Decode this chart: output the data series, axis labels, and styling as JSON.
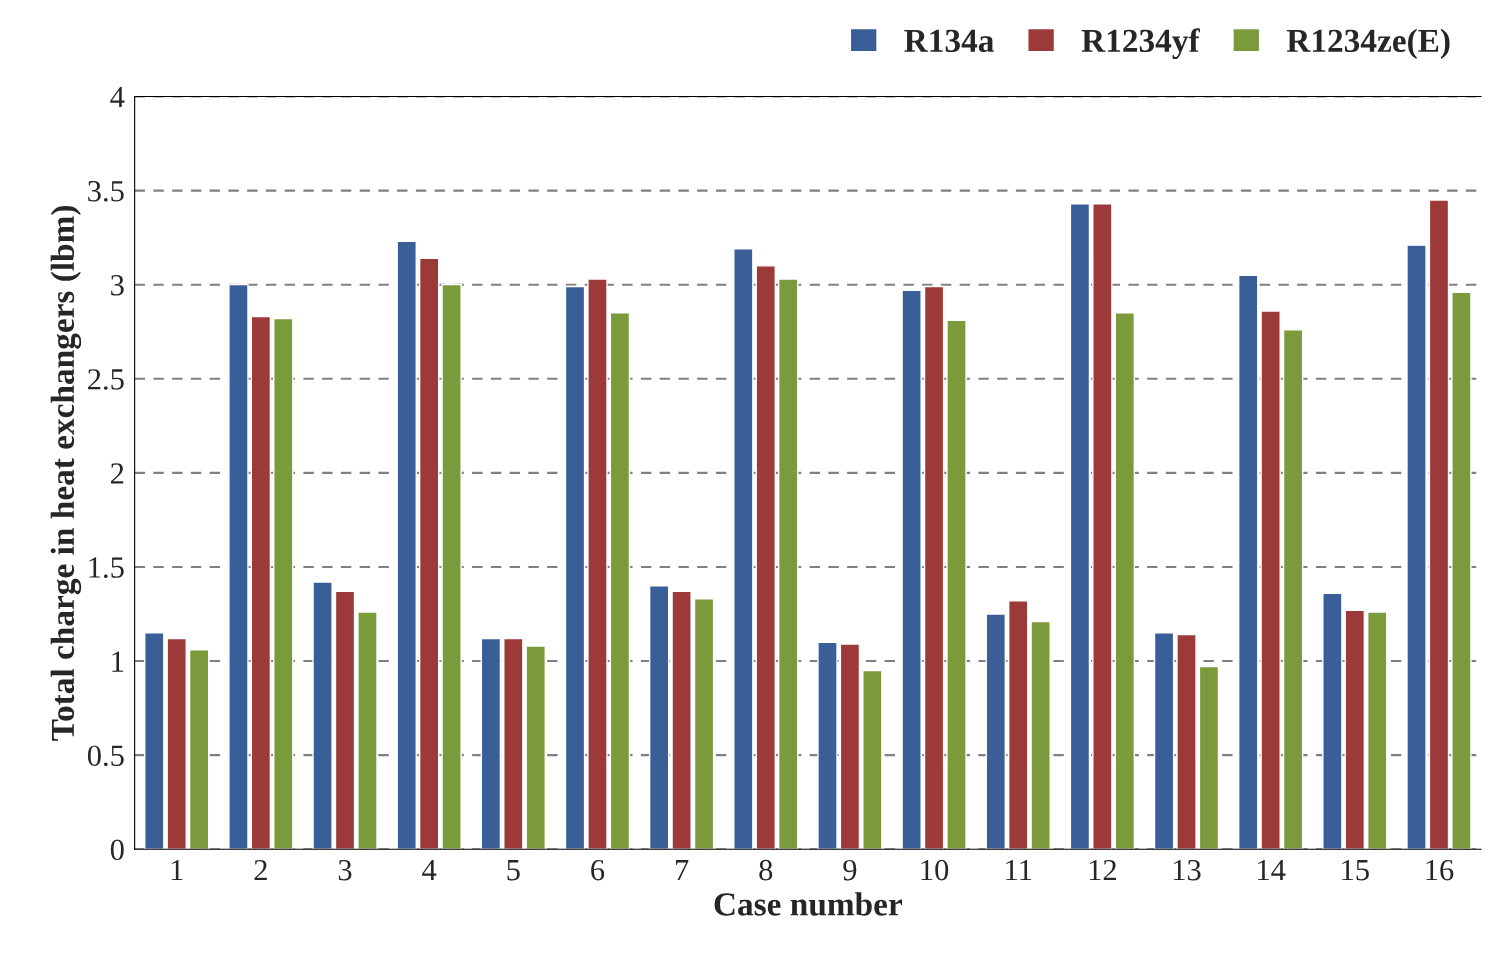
{
  "chart_data": {
    "type": "bar",
    "xlabel": "Case number",
    "ylabel": "Total charge in heat exchangers (lbm)",
    "categories": [
      "1",
      "2",
      "3",
      "4",
      "5",
      "6",
      "7",
      "8",
      "9",
      "10",
      "11",
      "12",
      "13",
      "14",
      "15",
      "16"
    ],
    "series": [
      {
        "name": "R134a",
        "color": "#3a5f98",
        "values": [
          1.15,
          3.0,
          1.42,
          3.23,
          1.12,
          2.99,
          1.4,
          3.19,
          1.1,
          2.97,
          1.25,
          3.43,
          1.15,
          3.05,
          1.36,
          3.21
        ]
      },
      {
        "name": "R1234yf",
        "color": "#9b3a38",
        "values": [
          1.12,
          2.83,
          1.37,
          3.14,
          1.12,
          3.03,
          1.37,
          3.1,
          1.09,
          2.99,
          1.32,
          3.43,
          1.14,
          2.86,
          1.27,
          3.45
        ]
      },
      {
        "name": "R1234ze(E)",
        "color": "#7a9a3c",
        "values": [
          1.06,
          2.82,
          1.26,
          3.0,
          1.08,
          2.85,
          1.33,
          3.03,
          0.95,
          2.81,
          1.21,
          2.85,
          0.97,
          2.76,
          1.26,
          2.96
        ]
      }
    ],
    "ylim": [
      0,
      4
    ],
    "yticks": [
      0,
      {
        "value": 0.5,
        "label": "0.5"
      },
      1,
      {
        "value": 1.5,
        "label": "1.5"
      },
      2,
      {
        "value": 2.5,
        "label": "2.5"
      },
      3,
      {
        "value": 3.5,
        "label": "3.5"
      },
      4
    ],
    "grid": "y",
    "legend": "top right"
  }
}
